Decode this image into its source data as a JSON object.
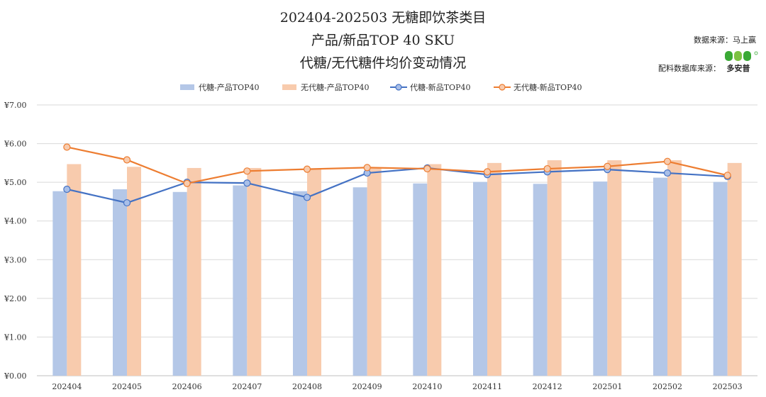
{
  "header": {
    "title_line1": "202404-202503 无糖即饮茶类目",
    "title_line2": "产品/新品TOP 40 SKU",
    "title_line3": "代糖/无代糖件均价变动情况",
    "source1": "数据来源：马上赢",
    "source2": "配料数据库来源：",
    "logo_text": "多安普"
  },
  "chart_data": {
    "type": "bar",
    "categories": [
      "202404",
      "202405",
      "202406",
      "202407",
      "202408",
      "202409",
      "202410",
      "202411",
      "202412",
      "202501",
      "202502",
      "202503"
    ],
    "ylim": [
      0,
      7
    ],
    "yticks": [
      "¥0.00",
      "¥1.00",
      "¥2.00",
      "¥3.00",
      "¥4.00",
      "¥5.00",
      "¥6.00",
      "¥7.00"
    ],
    "grid": true,
    "legend_position": "top",
    "series": [
      {
        "name": "代糖-产品TOP40",
        "kind": "bar",
        "color": "#b4c7e7",
        "values": [
          4.77,
          4.82,
          4.75,
          4.92,
          4.77,
          4.87,
          4.97,
          5.01,
          4.96,
          5.02,
          5.12,
          5.01
        ]
      },
      {
        "name": "无代糖-产品TOP40",
        "kind": "bar",
        "color": "#f8cbad",
        "values": [
          5.47,
          5.4,
          5.37,
          5.37,
          5.35,
          5.38,
          5.47,
          5.5,
          5.57,
          5.57,
          5.57,
          5.5
        ]
      },
      {
        "name": "代糖-新品TOP40",
        "kind": "line",
        "color": "#4472c4",
        "marker_fill": "#a9bfe8",
        "values": [
          4.82,
          4.47,
          5.0,
          4.98,
          4.61,
          5.24,
          5.37,
          5.2,
          5.27,
          5.33,
          5.24,
          5.15
        ]
      },
      {
        "name": "无代糖-新品TOP40",
        "kind": "line",
        "color": "#ed7d31",
        "marker_fill": "#f8cbad",
        "values": [
          5.91,
          5.58,
          4.97,
          5.29,
          5.34,
          5.38,
          5.35,
          5.27,
          5.35,
          5.41,
          5.54,
          5.18
        ]
      }
    ]
  }
}
